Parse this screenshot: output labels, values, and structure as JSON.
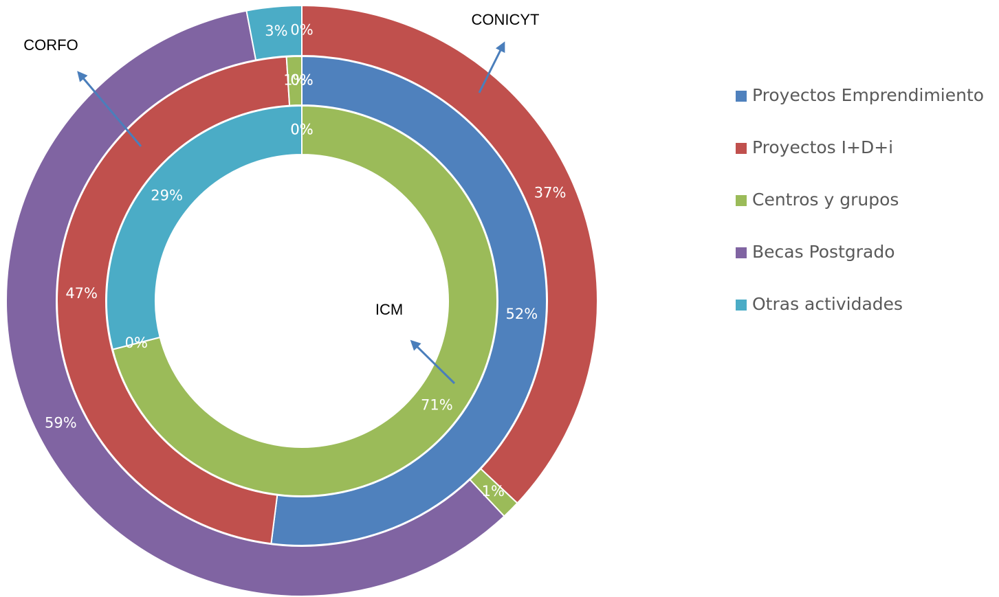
{
  "chart_data": {
    "type": "doughnut",
    "categories": [
      "Proyectos Emprendimiento",
      "Proyectos I+D+i",
      "Centros y grupos",
      "Becas Postgrado",
      "Otras actividades"
    ],
    "colors": [
      "#4f81bd",
      "#c0504d",
      "#9bbb59",
      "#8064a2",
      "#4bacc6"
    ],
    "series": [
      {
        "name": "CONICYT",
        "values": [
          0,
          37,
          1,
          59,
          3
        ],
        "value_labels": [
          "0%",
          "37%",
          "1%",
          "59%",
          "3%"
        ]
      },
      {
        "name": "CORFO",
        "values": [
          52,
          47,
          1,
          0,
          0
        ],
        "value_labels": [
          "52%",
          "47%",
          "1%",
          "0%",
          "0%"
        ]
      },
      {
        "name": "ICM",
        "values": [
          0,
          0,
          71,
          0,
          29
        ],
        "value_labels": [
          "0%",
          "0%",
          "71%",
          "0%",
          "29%"
        ]
      }
    ],
    "legend": "right"
  }
}
